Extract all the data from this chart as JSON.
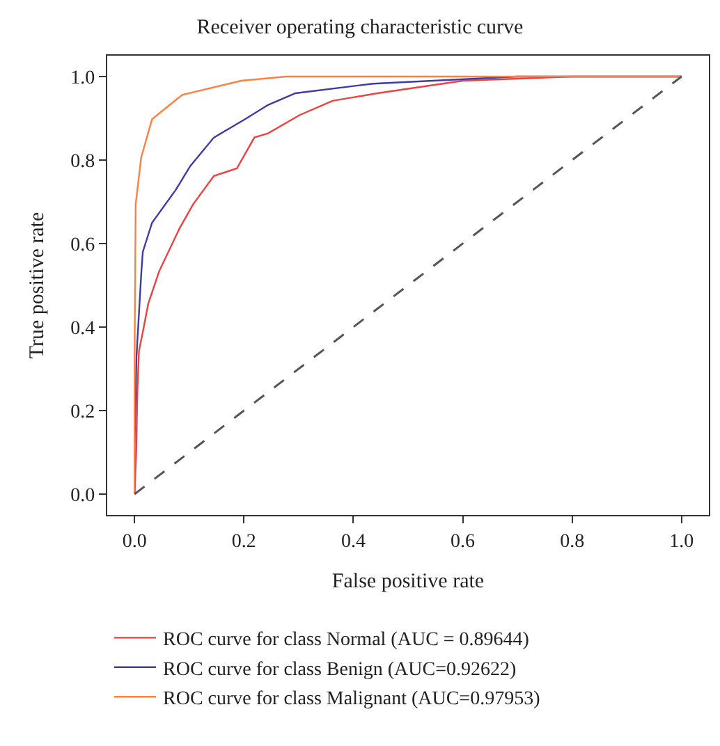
{
  "chart_data": {
    "type": "line",
    "title": "Receiver operating characteristic curve",
    "xlabel": "False positive rate",
    "ylabel": "True positive rate",
    "xlim": [
      -0.05,
      1.05
    ],
    "ylim": [
      -0.05,
      1.05
    ],
    "xticks": [
      {
        "value": 0,
        "label": "0.0"
      },
      0.2,
      0.4,
      0.6,
      0.8,
      {
        "value": 1,
        "label": "1.0"
      }
    ],
    "yticks": [
      {
        "value": 0,
        "label": "0.0"
      },
      0.2,
      0.4,
      0.6,
      0.8,
      {
        "value": 1,
        "label": "1.0"
      }
    ],
    "legend": "bottom",
    "marker": "none",
    "series": [
      {
        "name": "ROC curve for class Normal (AUC = 0.89644)",
        "color": "#f04040",
        "x": [
          0,
          0.003,
          0.005,
          0.008,
          0.015,
          0.025,
          0.045,
          0.082,
          0.107,
          0.145,
          0.187,
          0.219,
          0.244,
          0.302,
          0.362,
          0.444,
          0.6,
          0.8,
          1.0
        ],
        "values": [
          0,
          0.1,
          0.24,
          0.343,
          0.388,
          0.456,
          0.534,
          0.636,
          0.694,
          0.762,
          0.78,
          0.854,
          0.864,
          0.908,
          0.942,
          0.96,
          0.99,
          1.0,
          1.0
        ]
      },
      {
        "name": "ROC curve for class Benign (AUC=0.92622)",
        "color": "#3c3ca8",
        "x": [
          0,
          0.0,
          0.0035,
          0.012,
          0.015,
          0.032,
          0.075,
          0.102,
          0.145,
          0.202,
          0.244,
          0.294,
          0.436,
          0.7,
          1.0
        ],
        "values": [
          0,
          0.116,
          0.33,
          0.524,
          0.58,
          0.65,
          0.728,
          0.786,
          0.854,
          0.898,
          0.932,
          0.96,
          0.983,
          1.0,
          1.0
        ]
      },
      {
        "name": "ROC curve for class Malignant (AUC=0.97953)",
        "color": "#ff8040",
        "x": [
          0,
          0.0,
          0.002,
          0.012,
          0.032,
          0.087,
          0.195,
          0.277,
          1.0
        ],
        "values": [
          0,
          0.33,
          0.694,
          0.806,
          0.898,
          0.956,
          0.99,
          1.0,
          1.0
        ]
      },
      {
        "color": "#555555",
        "line_style": "dashed",
        "x": [
          0,
          1
        ],
        "values": [
          0,
          1
        ]
      }
    ]
  }
}
